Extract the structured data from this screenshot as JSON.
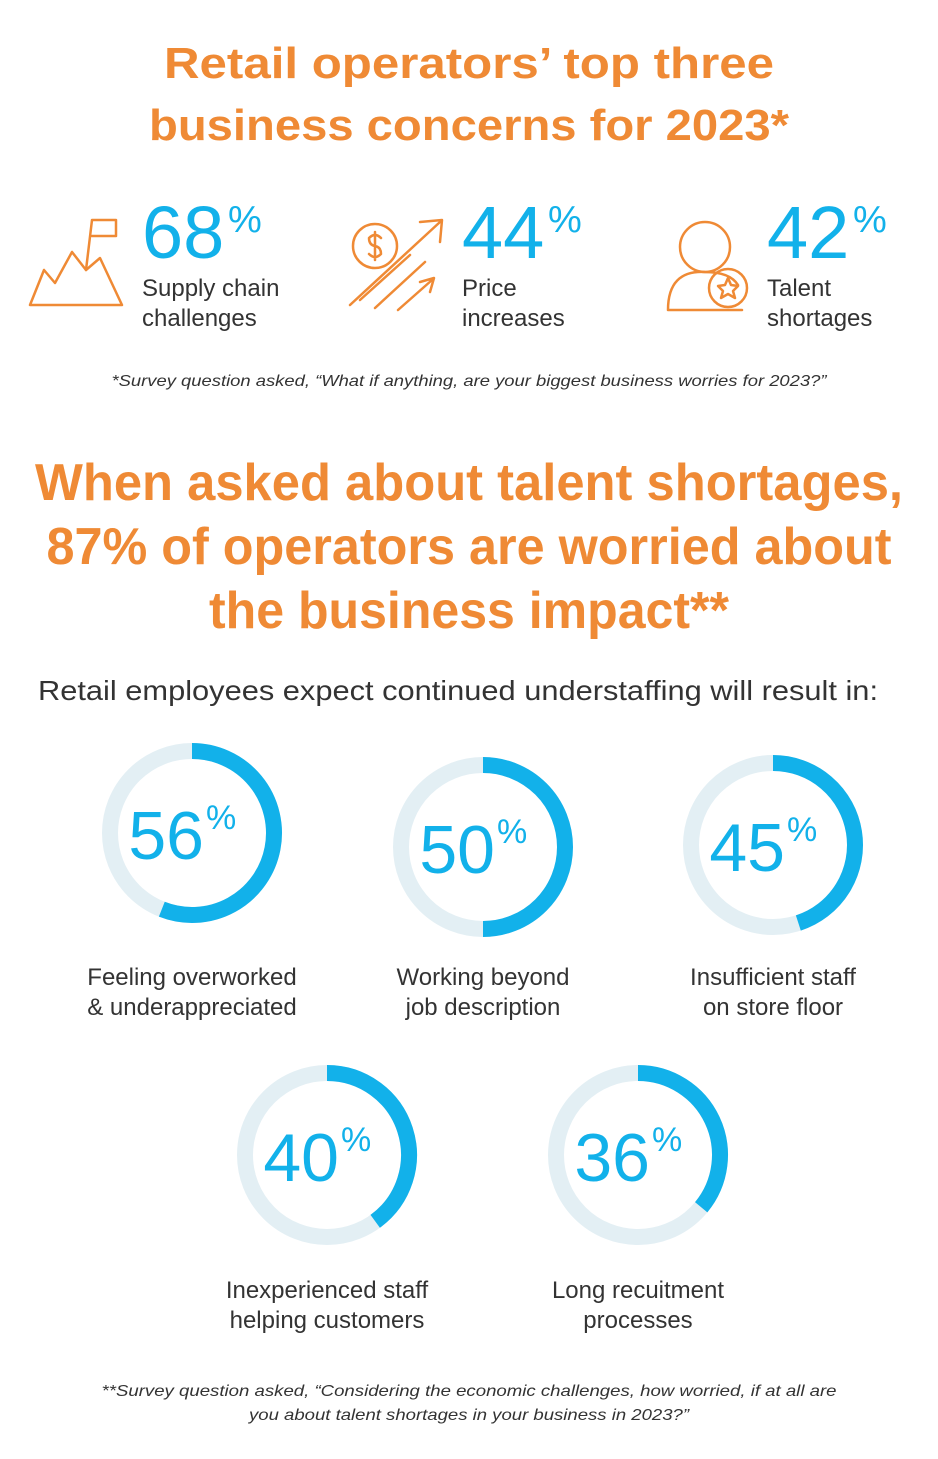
{
  "header": {
    "title_lines": [
      "Retail operators’ top three",
      "business concerns for 2023*"
    ]
  },
  "stats": [
    {
      "value": 68,
      "unit": "%",
      "label_lines": [
        "Supply chain",
        "challenges"
      ]
    },
    {
      "value": 44,
      "unit": "%",
      "label_lines": [
        "Price",
        "increases"
      ]
    },
    {
      "value": 42,
      "unit": "%",
      "label_lines": [
        "Talent",
        "shortages"
      ]
    }
  ],
  "footnote_1": "*Survey question asked, “What if anything, are your biggest business worries for 2023?”",
  "section": {
    "heading_lines": [
      "When asked about talent shortages,",
      "87% of operators are worried about",
      "the business impact**"
    ],
    "subheading": "Retail employees expect continued understaffing will result in:"
  },
  "gauges": [
    {
      "value": 56,
      "unit": "%",
      "label_lines": [
        "Feeling overworked",
        "& underappreciated"
      ]
    },
    {
      "value": 50,
      "unit": "%",
      "label_lines": [
        "Working beyond",
        "job description"
      ]
    },
    {
      "value": 45,
      "unit": "%",
      "label_lines": [
        "Insufficient staff",
        "on store floor"
      ]
    },
    {
      "value": 40,
      "unit": "%",
      "label_lines": [
        "Inexperienced staff",
        "helping customers"
      ]
    },
    {
      "value": 36,
      "unit": "%",
      "label_lines": [
        "Long recuitment",
        "processes"
      ]
    }
  ],
  "footnote_2_lines": [
    "**Survey question asked, “Considering the economic challenges, how worried, if at all are",
    "you about talent shortages in your business in 2023?”"
  ]
}
